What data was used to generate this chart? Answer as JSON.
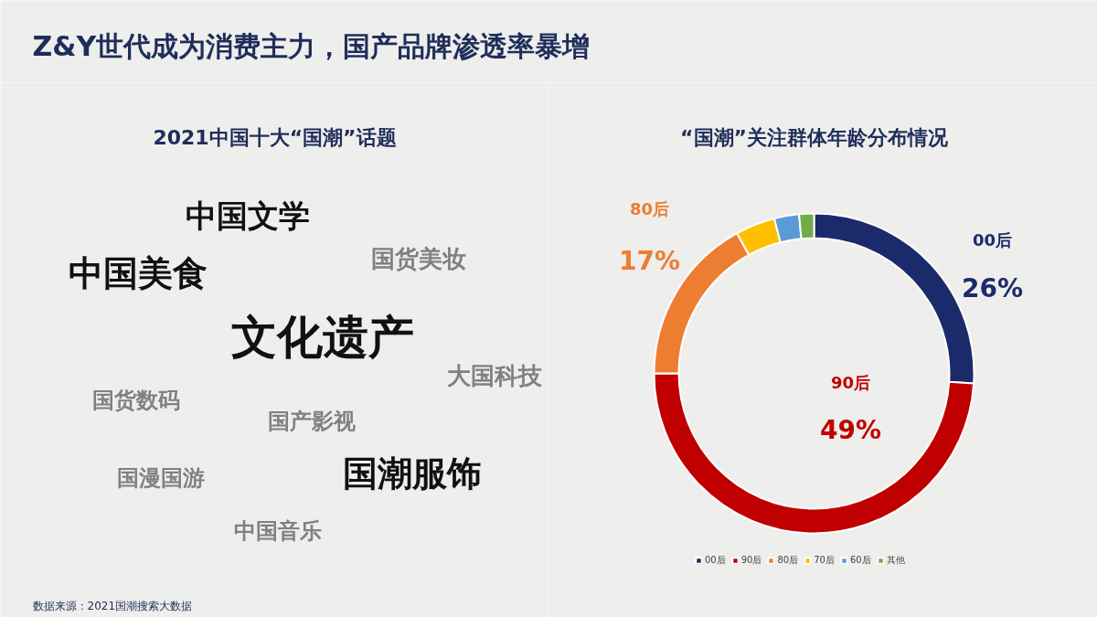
{
  "chart_data": [
    {
      "type": "other",
      "title": "Z&Y世代成为消费主力，国产品牌渗透率暴增",
      "subtitle": "2021中国十大“国潮”话题",
      "annotations": [
        "中国文学",
        "国货美妆",
        "中国美食",
        "文化遗产",
        "大国科技",
        "国货数码",
        "国产影视",
        "国潮服饰",
        "国漫国游",
        "中国音乐",
        "数据来源：2021国潮搜索大数据"
      ]
    },
    {
      "type": "donut",
      "title": "“国潮”关注群体年龄分布情况",
      "categories": [
        "00后",
        "90后",
        "80后",
        "70后",
        "60后",
        "其他"
      ],
      "values": [
        26,
        49,
        17,
        4,
        2.5,
        1.5
      ],
      "colors": [
        "#1b2a6b",
        "#c00000",
        "#ed7d31",
        "#ffc000",
        "#5b9bd5",
        "#70ad47"
      ],
      "value_labels": [
        "26%",
        "49%",
        "17%",
        null,
        null,
        null
      ],
      "legend": "bottom"
    }
  ]
}
